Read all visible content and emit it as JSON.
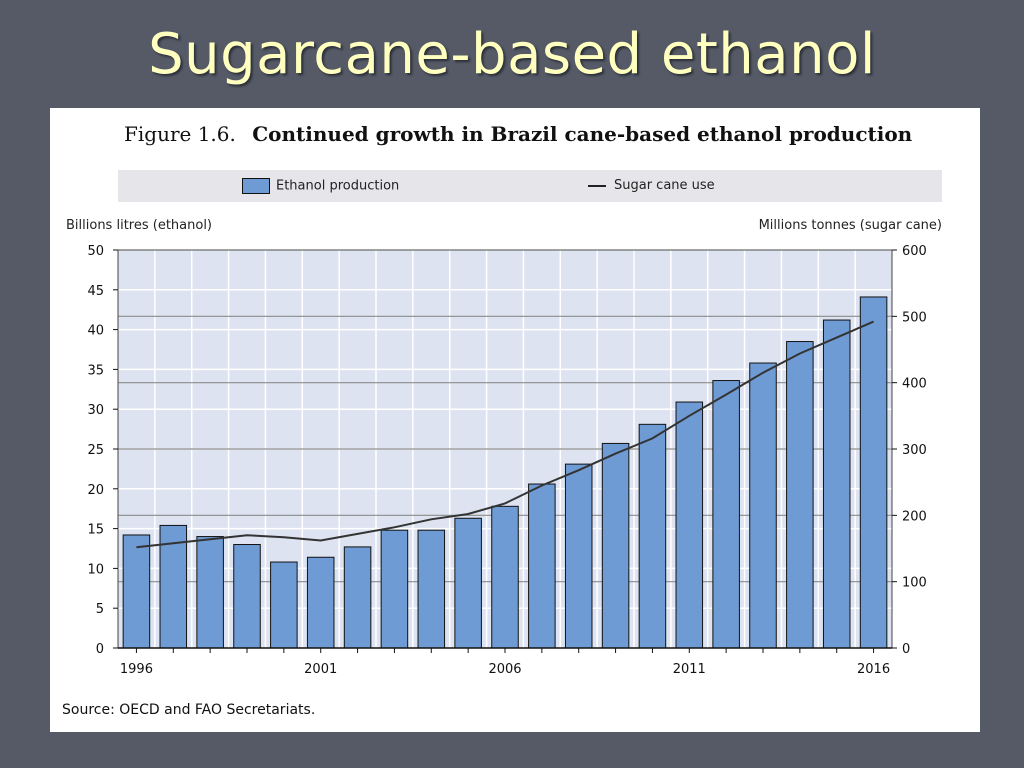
{
  "slide": {
    "title": "Sugarcane-based ethanol"
  },
  "figure": {
    "number": "Figure 1.6.",
    "title": "Continued growth in Brazil cane-based ethanol production",
    "source": "Source:  OECD and FAO Secretariats."
  },
  "chart_data": {
    "type": "bar",
    "x": [
      1996,
      1997,
      1998,
      1999,
      2000,
      2001,
      2002,
      2003,
      2004,
      2005,
      2006,
      2007,
      2008,
      2009,
      2010,
      2011,
      2012,
      2013,
      2014,
      2015,
      2016
    ],
    "x_tick_labels": [
      "1996",
      "2001",
      "2006",
      "2011",
      "2016"
    ],
    "series": [
      {
        "name": "Ethanol production",
        "type": "bar",
        "axis": "left",
        "color": "#6f9bd4",
        "values": [
          14.2,
          15.4,
          14.0,
          13.0,
          10.8,
          11.4,
          12.7,
          14.8,
          14.8,
          16.3,
          17.8,
          20.6,
          23.1,
          25.7,
          28.1,
          30.9,
          33.6,
          35.8,
          38.5,
          41.2,
          44.1
        ]
      },
      {
        "name": "Sugar cane use",
        "type": "line",
        "axis": "right",
        "color": "#333333",
        "values": [
          152,
          158,
          164,
          170,
          167,
          162,
          172,
          182,
          194,
          202,
          218,
          245,
          268,
          293,
          316,
          350,
          382,
          415,
          444,
          468,
          492
        ]
      }
    ],
    "ylabel_left": "Billions litres (ethanol)",
    "ylabel_right": "Millions tonnes (sugar cane)",
    "ylim_left": [
      0,
      50
    ],
    "ylim_right": [
      0,
      600
    ],
    "yticks_left": [
      0,
      5,
      10,
      15,
      20,
      25,
      30,
      35,
      40,
      45,
      50
    ],
    "yticks_right": [
      0,
      100,
      200,
      300,
      400,
      500,
      600
    ],
    "grid": true,
    "legend": "top"
  }
}
